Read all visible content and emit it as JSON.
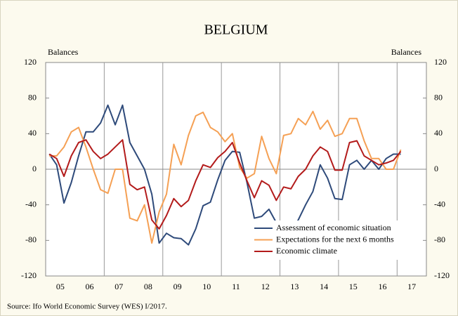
{
  "chart_data": {
    "type": "line",
    "title": "BELGIUM",
    "ylabel": "Balances",
    "y2label": "Balances",
    "source": "Source: Ifo World Economic Survey (WES) I/2017.",
    "x": [
      2005.125,
      2005.375,
      2005.625,
      2005.875,
      2006.125,
      2006.375,
      2006.625,
      2006.875,
      2007.125,
      2007.375,
      2007.625,
      2007.875,
      2008.125,
      2008.375,
      2008.625,
      2008.875,
      2009.125,
      2009.375,
      2009.625,
      2009.875,
      2010.125,
      2010.375,
      2010.625,
      2010.875,
      2011.125,
      2011.375,
      2011.625,
      2011.875,
      2012.125,
      2012.375,
      2012.625,
      2012.875,
      2013.125,
      2013.375,
      2013.625,
      2013.875,
      2014.125,
      2014.375,
      2014.625,
      2014.875,
      2015.125,
      2015.375,
      2015.625,
      2015.875,
      2016.125,
      2016.375,
      2016.625,
      2016.875,
      2017.125
    ],
    "series": [
      {
        "name": "Assessment of economic situation",
        "color": "#2e4a7a",
        "values": [
          17,
          5,
          -38,
          -15,
          15,
          42,
          42,
          52,
          72,
          50,
          72,
          30,
          15,
          0,
          -28,
          -83,
          -72,
          -77,
          -78,
          -85,
          -67,
          -41,
          -37,
          -12,
          10,
          20,
          19,
          -15,
          -55,
          -53,
          -45,
          -60,
          -62,
          -68,
          -57,
          -40,
          -25,
          5,
          -10,
          -33,
          -34,
          5,
          10,
          0,
          10,
          0,
          12,
          17,
          17
        ]
      },
      {
        "name": "Expectations for the next 6 months",
        "color": "#f5a054",
        "values": [
          15,
          15,
          25,
          42,
          47,
          25,
          0,
          -23,
          -27,
          0,
          0,
          -55,
          -58,
          -40,
          -83,
          -48,
          -28,
          28,
          5,
          38,
          60,
          64,
          47,
          42,
          31,
          40,
          2,
          -10,
          -5,
          37,
          12,
          -5,
          38,
          40,
          57,
          50,
          65,
          45,
          55,
          37,
          40,
          57,
          57,
          32,
          12,
          12,
          0,
          0,
          22
        ]
      },
      {
        "name": "Economic climate",
        "color": "#b31b1b",
        "values": [
          17,
          12,
          -8,
          15,
          30,
          33,
          20,
          12,
          17,
          25,
          33,
          -17,
          -23,
          -20,
          -57,
          -67,
          -52,
          -33,
          -42,
          -35,
          -13,
          5,
          2,
          13,
          20,
          30,
          7,
          -13,
          -32,
          -13,
          -18,
          -35,
          -20,
          -22,
          -8,
          0,
          15,
          25,
          20,
          -1,
          -1,
          30,
          32,
          15,
          10,
          5,
          7,
          10,
          20
        ]
      }
    ],
    "xlim": [
      2005,
      2018
    ],
    "xticks": [
      {
        "value": 2005.5,
        "label": "05"
      },
      {
        "value": 2006.5,
        "label": "06"
      },
      {
        "value": 2007.5,
        "label": "07"
      },
      {
        "value": 2008.5,
        "label": "08"
      },
      {
        "value": 2009.5,
        "label": "09"
      },
      {
        "value": 2010.5,
        "label": "10"
      },
      {
        "value": 2011.5,
        "label": "11"
      },
      {
        "value": 2012.5,
        "label": "12"
      },
      {
        "value": 2013.5,
        "label": "13"
      },
      {
        "value": 2014.5,
        "label": "14"
      },
      {
        "value": 2015.5,
        "label": "15"
      },
      {
        "value": 2016.5,
        "label": "16"
      },
      {
        "value": 2017.5,
        "label": "17"
      }
    ],
    "xgrid": [
      2007,
      2009,
      2011,
      2013,
      2015,
      2017
    ],
    "ylim": [
      -120,
      120
    ],
    "yticks": [
      -120,
      -80,
      -40,
      0,
      40,
      80,
      120
    ],
    "y2lim": [
      -120,
      120
    ],
    "y2ticks": [
      -120,
      -80,
      -40,
      0,
      40,
      80,
      120
    ],
    "legend": "lower right"
  }
}
